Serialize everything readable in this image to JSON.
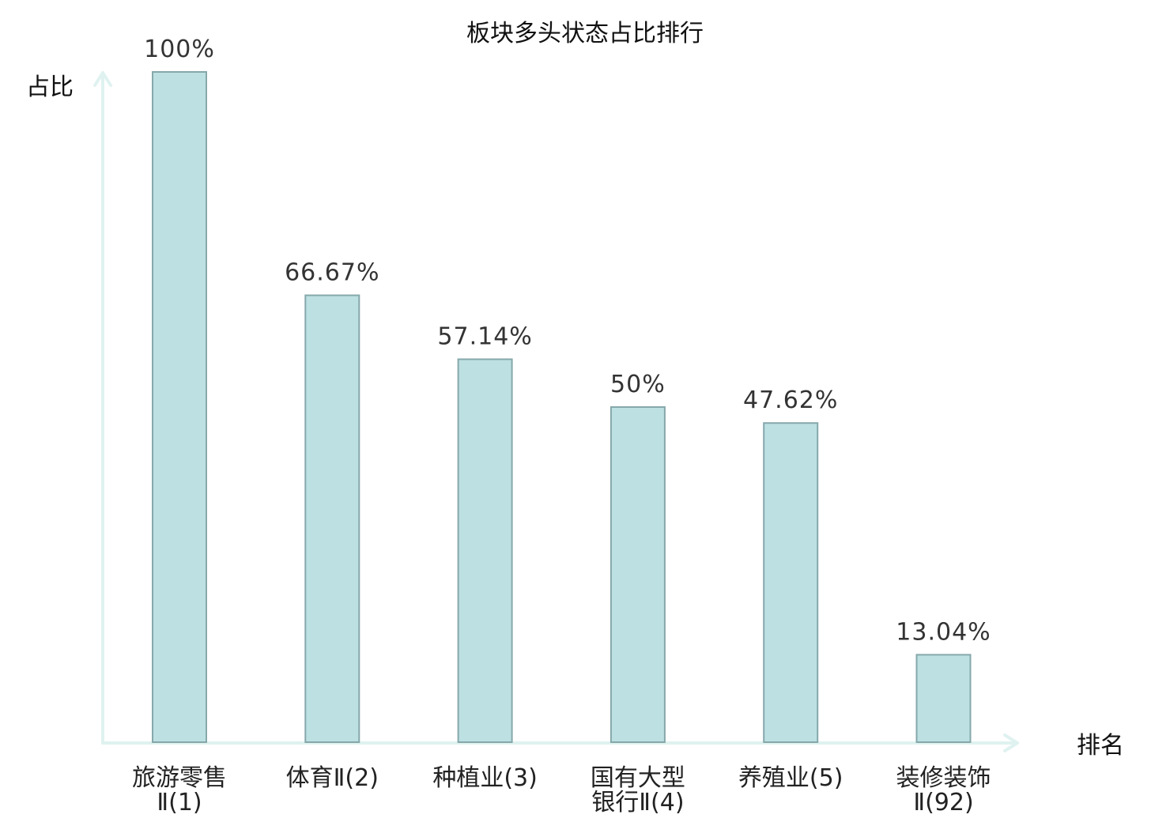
{
  "chart_data": {
    "type": "bar",
    "title": "板块多头状态占比排行",
    "xlabel": "排名",
    "ylabel": "占比",
    "ylim": [
      0,
      100
    ],
    "grid": false,
    "categories": [
      [
        "旅游零售",
        "Ⅱ(1)"
      ],
      [
        "体育Ⅱ(2)"
      ],
      [
        "种植业(3)"
      ],
      [
        "国有大型",
        "银行Ⅱ(4)"
      ],
      [
        "养殖业(5)"
      ],
      [
        "装修装饰",
        "Ⅱ(92)"
      ]
    ],
    "values": [
      100,
      66.67,
      57.14,
      50,
      47.62,
      13.04
    ],
    "value_labels": [
      "100%",
      "66.67%",
      "57.14%",
      "50%",
      "47.62%",
      "13.04%"
    ],
    "highlight_index": 5,
    "colors": {
      "bar_fill": "#bde0e3",
      "bar_stroke": "#86a8ab",
      "axis": "#dff2ef",
      "label_text": "#222222",
      "value_text": "#333333",
      "highlight_text": "#e8151b"
    }
  }
}
